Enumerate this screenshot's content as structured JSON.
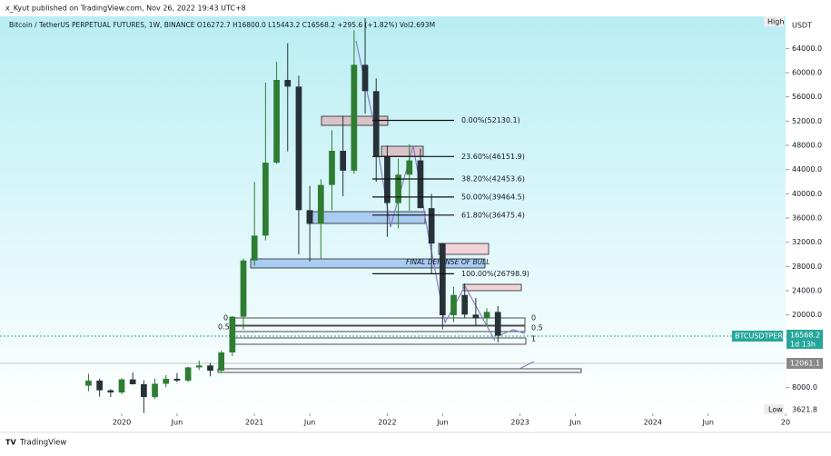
{
  "header": {
    "publisher": "x_Kyut published on TradingView.com, Nov 26, 2022 19:43 UTC+8"
  },
  "footer": {
    "brand": "TradingView"
  },
  "chart_data": {
    "type": "candlestick",
    "title": "Bitcoin / TetherUS PERPETUAL FUTURES, 1W, BINANCE  O16272.7  H16800.0  L15443.2  C16568.2  +295.6 (+1.82%)  Vol2.693M",
    "x": [
      "2019-10",
      "2019-11",
      "2019-12",
      "2020-01",
      "2020-02",
      "2020-03",
      "2020-04",
      "2020-05",
      "2020-06",
      "2020-07",
      "2020-08",
      "2020-09",
      "2020-10",
      "2020-11",
      "2020-12",
      "2021-01",
      "2021-02",
      "2021-03",
      "2021-04",
      "2021-05",
      "2021-06",
      "2021-07",
      "2021-08",
      "2021-09",
      "2021-10",
      "2021-11",
      "2021-12",
      "2022-01",
      "2022-02",
      "2022-03",
      "2022-04",
      "2022-05",
      "2022-06",
      "2022-07",
      "2022-08",
      "2022-09",
      "2022-10",
      "2022-11"
    ],
    "open": [
      8300,
      9150,
      7550,
      7190,
      9350,
      8550,
      6430,
      8630,
      9450,
      9140,
      11330,
      11650,
      10780,
      13800,
      19700,
      28990,
      33100,
      45140,
      58800,
      57700,
      37300,
      35040,
      41460,
      47100,
      43820,
      61300,
      56950,
      46210,
      38470,
      43160,
      45510,
      37630,
      31790,
      19940,
      23300,
      20050,
      19420,
      20490
    ],
    "high": [
      10300,
      9500,
      7750,
      9580,
      10500,
      9200,
      9480,
      10080,
      10400,
      11450,
      12470,
      12070,
      14100,
      19800,
      29300,
      41950,
      58350,
      61800,
      64850,
      59500,
      41300,
      42400,
      50500,
      52900,
      67000,
      69000,
      59050,
      47990,
      45800,
      48200,
      47450,
      40000,
      31900,
      24650,
      25200,
      22800,
      21100,
      21450
    ],
    "low": [
      7400,
      6500,
      6450,
      6870,
      8500,
      3800,
      6150,
      8100,
      8900,
      8900,
      10900,
      9850,
      10370,
      13200,
      17600,
      28130,
      32300,
      44950,
      47000,
      30000,
      28800,
      29300,
      37300,
      39600,
      43300,
      53250,
      42000,
      32900,
      34300,
      37200,
      37600,
      26700,
      17600,
      18800,
      19550,
      18150,
      18200,
      15443
    ],
    "close": [
      9150,
      7550,
      7190,
      9350,
      8550,
      6430,
      8630,
      9450,
      9140,
      11330,
      11650,
      10780,
      13800,
      19700,
      28990,
      33100,
      45140,
      58800,
      57700,
      37300,
      35040,
      41460,
      47100,
      43820,
      61300,
      56950,
      46210,
      38470,
      43160,
      45510,
      37630,
      31790,
      19940,
      23300,
      20050,
      19420,
      20490,
      16568.2
    ],
    "up_color": "#2e7d32",
    "down_color": "#263238",
    "xlim": [
      "2019-02",
      "2025-01"
    ],
    "xticks": [
      {
        "value": "2020-01",
        "label": "2020"
      },
      {
        "value": "2020-06",
        "label": "Jun"
      },
      {
        "value": "2021-01",
        "label": "2021"
      },
      {
        "value": "2021-06",
        "label": "Jun"
      },
      {
        "value": "2022-01",
        "label": "2022"
      },
      {
        "value": "2022-06",
        "label": "Jun"
      },
      {
        "value": "2023-01",
        "label": "2023"
      },
      {
        "value": "2023-06",
        "label": "Jun"
      },
      {
        "value": "2024-01",
        "label": "2024"
      },
      {
        "value": "2024-06",
        "label": "Jun"
      },
      {
        "value": "2025-01",
        "label": "20"
      }
    ],
    "ylim": [
      3750,
      69300
    ],
    "yticks": [
      {
        "value": 8000,
        "label": "8000.0"
      },
      {
        "value": 20000,
        "label": "20000.0"
      },
      {
        "value": 24000,
        "label": "24000.0"
      },
      {
        "value": 28000,
        "label": "28000.0"
      },
      {
        "value": 32000,
        "label": "32000.0"
      },
      {
        "value": 36000,
        "label": "36000.0"
      },
      {
        "value": 40000,
        "label": "40000.0"
      },
      {
        "value": 44000,
        "label": "44000.0"
      },
      {
        "value": 48000,
        "label": "48000.0"
      },
      {
        "value": 52000,
        "label": "52000.0"
      },
      {
        "value": 56000,
        "label": "56000.0"
      },
      {
        "value": 60000,
        "label": "60000.0"
      },
      {
        "value": 64000,
        "label": "64000.0"
      }
    ],
    "fib_levels": [
      {
        "value": 52130.1,
        "label": "0.00%(52130.1)"
      },
      {
        "value": 46151.9,
        "label": "23.60%(46151.9)"
      },
      {
        "value": 42453.6,
        "label": "38.20%(42453.6)"
      },
      {
        "value": 39464.5,
        "label": "50.00%(39464.5)"
      },
      {
        "value": 36475.4,
        "label": "61.80%(36475.4)"
      },
      {
        "value": 26798.9,
        "label": "100.00%(26798.9)"
      }
    ],
    "annotation": "FINAL DEFENSE OF BULL",
    "range_labels": [
      "0",
      "0.5",
      "1"
    ],
    "axis_unit": "USDT",
    "high_label": "High",
    "low_label": "Low",
    "low_value": {
      "value": 3621.8,
      "label": "3621.8"
    },
    "symbol": "BTCUSDTPERP",
    "last_price": {
      "value": 16568.2,
      "label": "16568.2"
    },
    "countdown": "1d 13h",
    "level_price": {
      "value": 12061.1,
      "label": "12061.1"
    }
  }
}
